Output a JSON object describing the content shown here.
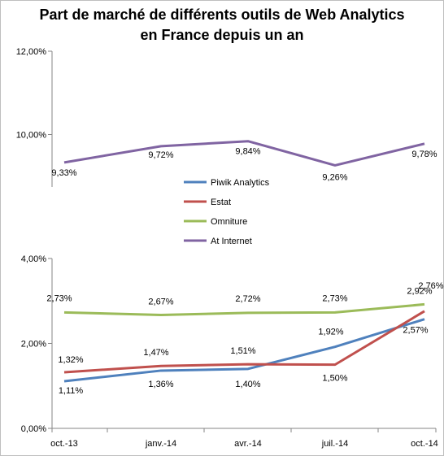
{
  "chart_data": {
    "type": "line",
    "title_line1": "Part de marché de différents outils de Web Analytics",
    "title_line2": "en France depuis un an",
    "categories": [
      "oct.-13",
      "janv.-14",
      "avr.-14",
      "juil.-14",
      "oct.-14"
    ],
    "axis_top": {
      "ticks": [
        "10,00%",
        "12,00%"
      ],
      "ylim": [
        8.0,
        12.0
      ]
    },
    "axis_bottom": {
      "ticks": [
        "0,00%",
        "2,00%",
        "4,00%"
      ],
      "ylim": [
        0.0,
        4.0
      ]
    },
    "y_break": true,
    "legend_position": "center-right, between panels",
    "grid": false,
    "series": [
      {
        "name": "Piwik Analytics",
        "color": "#4f81bd",
        "panel": "bottom",
        "values": [
          1.11,
          1.36,
          1.4,
          1.92,
          2.57
        ],
        "labels": [
          "1,11%",
          "1,36%",
          "1,40%",
          "1,92%",
          "2,57%"
        ]
      },
      {
        "name": "Estat",
        "color": "#c0504d",
        "panel": "bottom",
        "values": [
          1.32,
          1.47,
          1.51,
          1.5,
          2.76
        ],
        "labels": [
          "1,32%",
          "1,47%",
          "1,51%",
          "1,50%",
          "2,76%"
        ]
      },
      {
        "name": "Omniture",
        "color": "#9bbb59",
        "panel": "bottom",
        "values": [
          2.73,
          2.67,
          2.72,
          2.73,
          2.92
        ],
        "labels": [
          "2,73%",
          "2,67%",
          "2,72%",
          "2,73%",
          "2,92%"
        ]
      },
      {
        "name": "At Internet",
        "color": "#8064a2",
        "panel": "top",
        "values": [
          9.33,
          9.72,
          9.84,
          9.26,
          9.78
        ],
        "labels": [
          "9,33%",
          "9,72%",
          "9,84%",
          "9,26%",
          "9,78%"
        ]
      }
    ]
  }
}
